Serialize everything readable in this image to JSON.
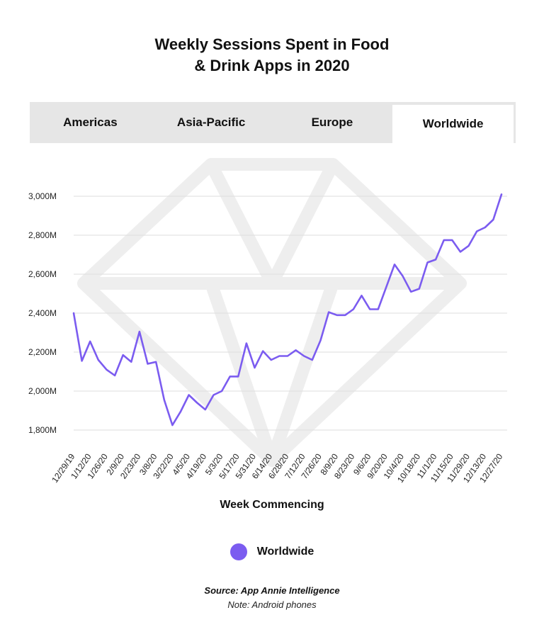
{
  "title_line1": "Weekly Sessions Spent in Food",
  "title_line2": "& Drink Apps in 2020",
  "tabs": [
    {
      "label": "Americas",
      "active": false
    },
    {
      "label": "Asia-Pacific",
      "active": false
    },
    {
      "label": "Europe",
      "active": false
    },
    {
      "label": "Worldwide",
      "active": true
    }
  ],
  "x_axis_title": "Week Commencing",
  "legend": {
    "label": "Worldwide",
    "color": "#7b5cf0"
  },
  "source": "Source: App Annie Intelligence",
  "note": "Note: Android phones",
  "colors": {
    "line": "#7b5cf0",
    "grid": "#dddddd",
    "watermark": "#eeeeee",
    "tab_bg": "#e6e6e6"
  },
  "chart_data": {
    "type": "line",
    "ylim": [
      1700,
      3000
    ],
    "yticks": [
      1800,
      2000,
      2200,
      2400,
      2600,
      2800,
      3000
    ],
    "ytick_labels": [
      "1,800M",
      "2,000M",
      "2,200M",
      "2,400M",
      "2,600M",
      "2,800M",
      "3,000M"
    ],
    "xlabel": "Week Commencing",
    "grid": true,
    "x_labels": [
      "12/29/19",
      "1/12/20",
      "1/26/20",
      "2/9/20",
      "2/23/20",
      "3/8/20",
      "3/22/20",
      "4/5/20",
      "4/19/20",
      "5/3/20",
      "5/17/20",
      "5/31/20",
      "6/14/20",
      "6/28/20",
      "7/12/20",
      "7/26/20",
      "8/9/20",
      "8/23/20",
      "9/6/20",
      "9/20/20",
      "10/4/20",
      "10/18/20",
      "11/1/20",
      "11/15/20",
      "11/29/20",
      "12/13/20",
      "12/27/20"
    ],
    "series": [
      {
        "name": "Worldwide",
        "values": [
          2400,
          2155,
          2255,
          2160,
          2110,
          2080,
          2185,
          2150,
          2305,
          2140,
          2150,
          1955,
          1825,
          1895,
          1980,
          1940,
          1905,
          1980,
          2000,
          2075,
          2075,
          2245,
          2120,
          2205,
          2160,
          2180,
          2180,
          2210,
          2180,
          2160,
          2260,
          2405,
          2390,
          2390,
          2420,
          2490,
          2420,
          2420,
          2535,
          2650,
          2590,
          2510,
          2525,
          2660,
          2675,
          2775,
          2775,
          2715,
          2745,
          2820,
          2840,
          2880,
          3010
        ]
      }
    ]
  }
}
